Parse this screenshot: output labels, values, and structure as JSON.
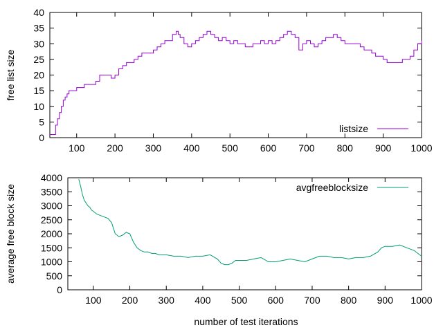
{
  "chart_data": [
    {
      "type": "line",
      "title": "",
      "xlabel": "",
      "ylabel": "free list size",
      "xlim": [
        30,
        1000
      ],
      "ylim": [
        0,
        40
      ],
      "x_ticks": [
        100,
        200,
        300,
        400,
        500,
        600,
        700,
        800,
        900,
        1000
      ],
      "y_ticks": [
        0,
        5,
        10,
        15,
        20,
        25,
        30,
        35,
        40
      ],
      "x_tick_labels": [
        "100",
        "200",
        "300",
        "400",
        "500",
        "600",
        "700",
        "800",
        "900",
        "1000"
      ],
      "y_tick_labels": [
        "0",
        "5",
        "10",
        "15",
        "20",
        "25",
        "30",
        "35",
        "40"
      ],
      "grid": false,
      "legend_position": "bottom-right",
      "series": [
        {
          "name": "listsize",
          "color": "#9400d3",
          "step": true,
          "x": [
            30,
            40,
            45,
            50,
            55,
            60,
            65,
            70,
            75,
            80,
            90,
            100,
            110,
            120,
            130,
            140,
            150,
            160,
            170,
            180,
            190,
            200,
            210,
            220,
            230,
            240,
            250,
            260,
            270,
            280,
            290,
            300,
            310,
            320,
            330,
            340,
            350,
            360,
            365,
            370,
            380,
            390,
            400,
            410,
            420,
            430,
            440,
            450,
            460,
            470,
            480,
            490,
            500,
            510,
            520,
            530,
            540,
            550,
            560,
            570,
            580,
            590,
            600,
            610,
            620,
            630,
            640,
            650,
            660,
            670,
            680,
            690,
            700,
            710,
            720,
            730,
            740,
            750,
            760,
            770,
            780,
            790,
            800,
            810,
            820,
            830,
            840,
            850,
            860,
            870,
            880,
            890,
            900,
            910,
            920,
            930,
            940,
            950,
            960,
            970,
            980,
            990,
            1000
          ],
          "y": [
            1,
            1,
            4,
            6,
            8,
            10,
            12,
            13,
            14,
            15,
            15,
            16,
            16,
            17,
            17,
            17,
            18,
            20,
            20,
            20,
            19,
            20,
            22,
            23,
            24,
            24,
            25,
            26,
            27,
            27,
            27,
            28,
            29,
            30,
            31,
            31,
            33,
            34,
            33,
            32,
            30,
            29,
            30,
            31,
            32,
            33,
            34,
            33,
            32,
            31,
            32,
            31,
            30,
            31,
            30,
            30,
            29,
            29,
            30,
            30,
            31,
            30,
            31,
            30,
            31,
            32,
            33,
            34,
            33,
            32,
            28,
            30,
            31,
            30,
            29,
            30,
            31,
            32,
            32,
            33,
            32,
            31,
            30,
            30,
            30,
            30,
            29,
            28,
            28,
            27,
            26,
            26,
            25,
            24,
            24,
            24,
            24,
            25,
            25,
            26,
            28,
            30,
            31
          ]
        }
      ]
    },
    {
      "type": "line",
      "title": "",
      "xlabel": "number of test iterations",
      "ylabel": "average free block size",
      "xlim": [
        30,
        1000
      ],
      "ylim": [
        0,
        4000
      ],
      "x_ticks": [
        100,
        200,
        300,
        400,
        500,
        600,
        700,
        800,
        900,
        1000
      ],
      "y_ticks": [
        0,
        500,
        1000,
        1500,
        2000,
        2500,
        3000,
        3500,
        4000
      ],
      "x_tick_labels": [
        "100",
        "200",
        "300",
        "400",
        "500",
        "600",
        "700",
        "800",
        "900",
        "1000"
      ],
      "y_tick_labels": [
        "0",
        "500",
        "1000",
        "1500",
        "2000",
        "2500",
        "3000",
        "3500",
        "4000"
      ],
      "grid": false,
      "legend_position": "top-right",
      "series": [
        {
          "name": "avgfreeblocksize",
          "color": "#009e73",
          "step": false,
          "x": [
            60,
            65,
            70,
            75,
            80,
            85,
            90,
            95,
            100,
            110,
            120,
            130,
            140,
            150,
            160,
            170,
            180,
            190,
            200,
            210,
            220,
            230,
            240,
            250,
            260,
            270,
            280,
            290,
            300,
            320,
            340,
            360,
            380,
            400,
            420,
            440,
            450,
            460,
            470,
            480,
            490,
            500,
            520,
            540,
            560,
            580,
            600,
            620,
            640,
            660,
            680,
            700,
            720,
            740,
            760,
            780,
            800,
            820,
            840,
            860,
            880,
            890,
            900,
            920,
            940,
            960,
            970,
            980,
            990,
            1000
          ],
          "y": [
            3950,
            3700,
            3400,
            3200,
            3100,
            3000,
            2950,
            2850,
            2800,
            2700,
            2650,
            2600,
            2550,
            2400,
            2000,
            1900,
            1950,
            2050,
            2000,
            1700,
            1500,
            1400,
            1350,
            1350,
            1300,
            1300,
            1250,
            1250,
            1250,
            1200,
            1200,
            1150,
            1200,
            1200,
            1250,
            1100,
            950,
            900,
            900,
            950,
            1050,
            1050,
            1050,
            1100,
            1150,
            1000,
            1000,
            1050,
            1100,
            1050,
            1000,
            1100,
            1200,
            1200,
            1150,
            1150,
            1100,
            1150,
            1150,
            1200,
            1350,
            1500,
            1550,
            1550,
            1600,
            1500,
            1450,
            1400,
            1300,
            1200
          ]
        }
      ]
    }
  ]
}
